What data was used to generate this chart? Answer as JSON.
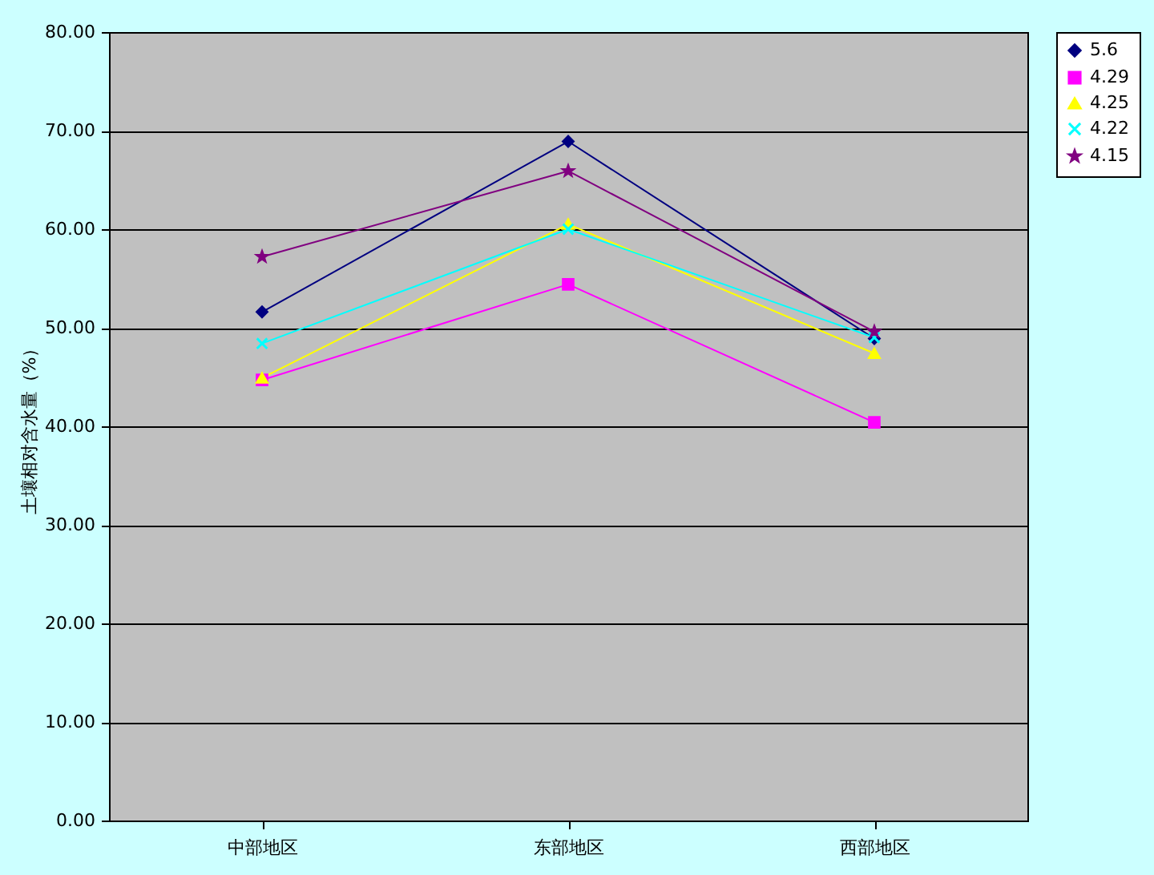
{
  "chart_data": {
    "type": "line",
    "ylabel": "土壤相对含水量（%）",
    "categories": [
      "中部地区",
      "东部地区",
      "西部地区"
    ],
    "series": [
      {
        "name": "5.6",
        "color": "#000080",
        "marker": "diamond",
        "values": [
          51.6,
          68.9,
          48.9
        ]
      },
      {
        "name": "4.29",
        "color": "#ff00ff",
        "marker": "square",
        "values": [
          44.7,
          54.4,
          40.4
        ]
      },
      {
        "name": "4.25",
        "color": "#ffff00",
        "marker": "triangle",
        "values": [
          44.9,
          60.5,
          47.4
        ]
      },
      {
        "name": "4.22",
        "color": "#00ffff",
        "marker": "cross",
        "values": [
          48.4,
          60.0,
          49.0
        ]
      },
      {
        "name": "4.15",
        "color": "#800080",
        "marker": "star",
        "values": [
          57.2,
          65.9,
          49.6
        ]
      }
    ],
    "ylim": [
      0,
      80
    ],
    "yticks": [
      {
        "value": 0,
        "label": "0.00"
      },
      {
        "value": 10,
        "label": "10.00"
      },
      {
        "value": 20,
        "label": "20.00"
      },
      {
        "value": 30,
        "label": "30.00"
      },
      {
        "value": 40,
        "label": "40.00"
      },
      {
        "value": 50,
        "label": "50.00"
      },
      {
        "value": 60,
        "label": "60.00"
      },
      {
        "value": 70,
        "label": "70.00"
      },
      {
        "value": 80,
        "label": "80.00"
      }
    ],
    "grid": "y",
    "legend": "right",
    "line_style": "solid"
  }
}
